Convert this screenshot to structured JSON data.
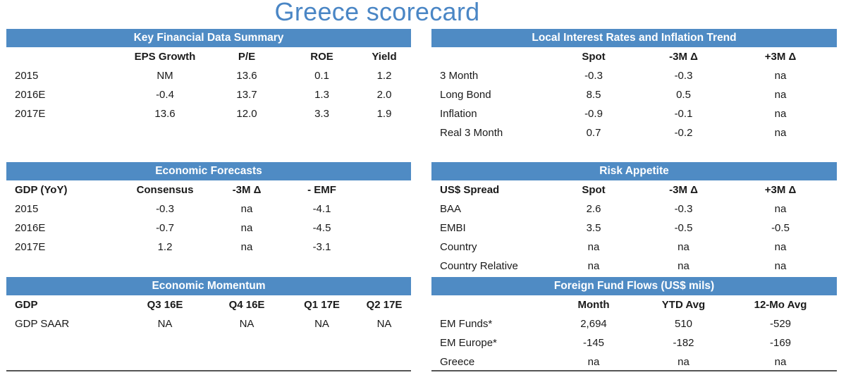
{
  "title": "Greece scorecard",
  "key_financial": {
    "header": "Key Financial Data Summary",
    "columns": [
      "",
      "EPS Growth",
      "P/E",
      "ROE",
      "Yield"
    ],
    "rows": [
      [
        "2015",
        "NM",
        "13.6",
        "0.1",
        "1.2"
      ],
      [
        "2016E",
        "-0.4",
        "13.7",
        "1.3",
        "2.0"
      ],
      [
        "2017E",
        "13.6",
        "12.0",
        "3.3",
        "1.9"
      ]
    ]
  },
  "local_rates": {
    "header": "Local Interest Rates and Inflation Trend",
    "columns": [
      "",
      "Spot",
      "-3M Δ",
      "+3M Δ"
    ],
    "rows": [
      [
        "3 Month",
        "-0.3",
        "-0.3",
        "na"
      ],
      [
        "Long Bond",
        "8.5",
        "0.5",
        "na"
      ],
      [
        "Inflation",
        "-0.9",
        "-0.1",
        "na"
      ],
      [
        "Real 3 Month",
        "0.7",
        "-0.2",
        "na"
      ]
    ]
  },
  "economic_forecasts": {
    "header": "Economic Forecasts",
    "columns": [
      "GDP (YoY)",
      "Consensus",
      "-3M Δ",
      "- EMF",
      ""
    ],
    "rows": [
      [
        "2015",
        "-0.3",
        "na",
        "-4.1",
        ""
      ],
      [
        "2016E",
        "-0.7",
        "na",
        "-4.5",
        ""
      ],
      [
        "2017E",
        "1.2",
        "na",
        "-3.1",
        ""
      ]
    ]
  },
  "risk_appetite": {
    "header": "Risk Appetite",
    "columns": [
      "US$ Spread",
      "Spot",
      "-3M Δ",
      "+3M Δ"
    ],
    "rows": [
      [
        "BAA",
        "2.6",
        "-0.3",
        "na"
      ],
      [
        "EMBI",
        "3.5",
        "-0.5",
        "-0.5"
      ],
      [
        "Country",
        "na",
        "na",
        "na"
      ],
      [
        "Country Relative",
        "na",
        "na",
        "na"
      ]
    ]
  },
  "economic_momentum": {
    "header": "Economic Momentum",
    "columns": [
      "GDP",
      "Q3 16E",
      "Q4 16E",
      "Q1 17E",
      "Q2 17E"
    ],
    "rows": [
      [
        "GDP SAAR",
        "NA",
        "NA",
        "NA",
        "NA"
      ]
    ]
  },
  "fund_flows": {
    "header": "Foreign Fund Flows (US$ mils)",
    "columns": [
      "",
      "Month",
      "YTD Avg",
      "12-Mo Avg"
    ],
    "rows": [
      [
        "EM Funds*",
        "2,694",
        "510",
        "-529"
      ],
      [
        "EM Europe*",
        "-145",
        "-182",
        "-169"
      ],
      [
        "Greece",
        "na",
        "na",
        "na"
      ]
    ]
  }
}
